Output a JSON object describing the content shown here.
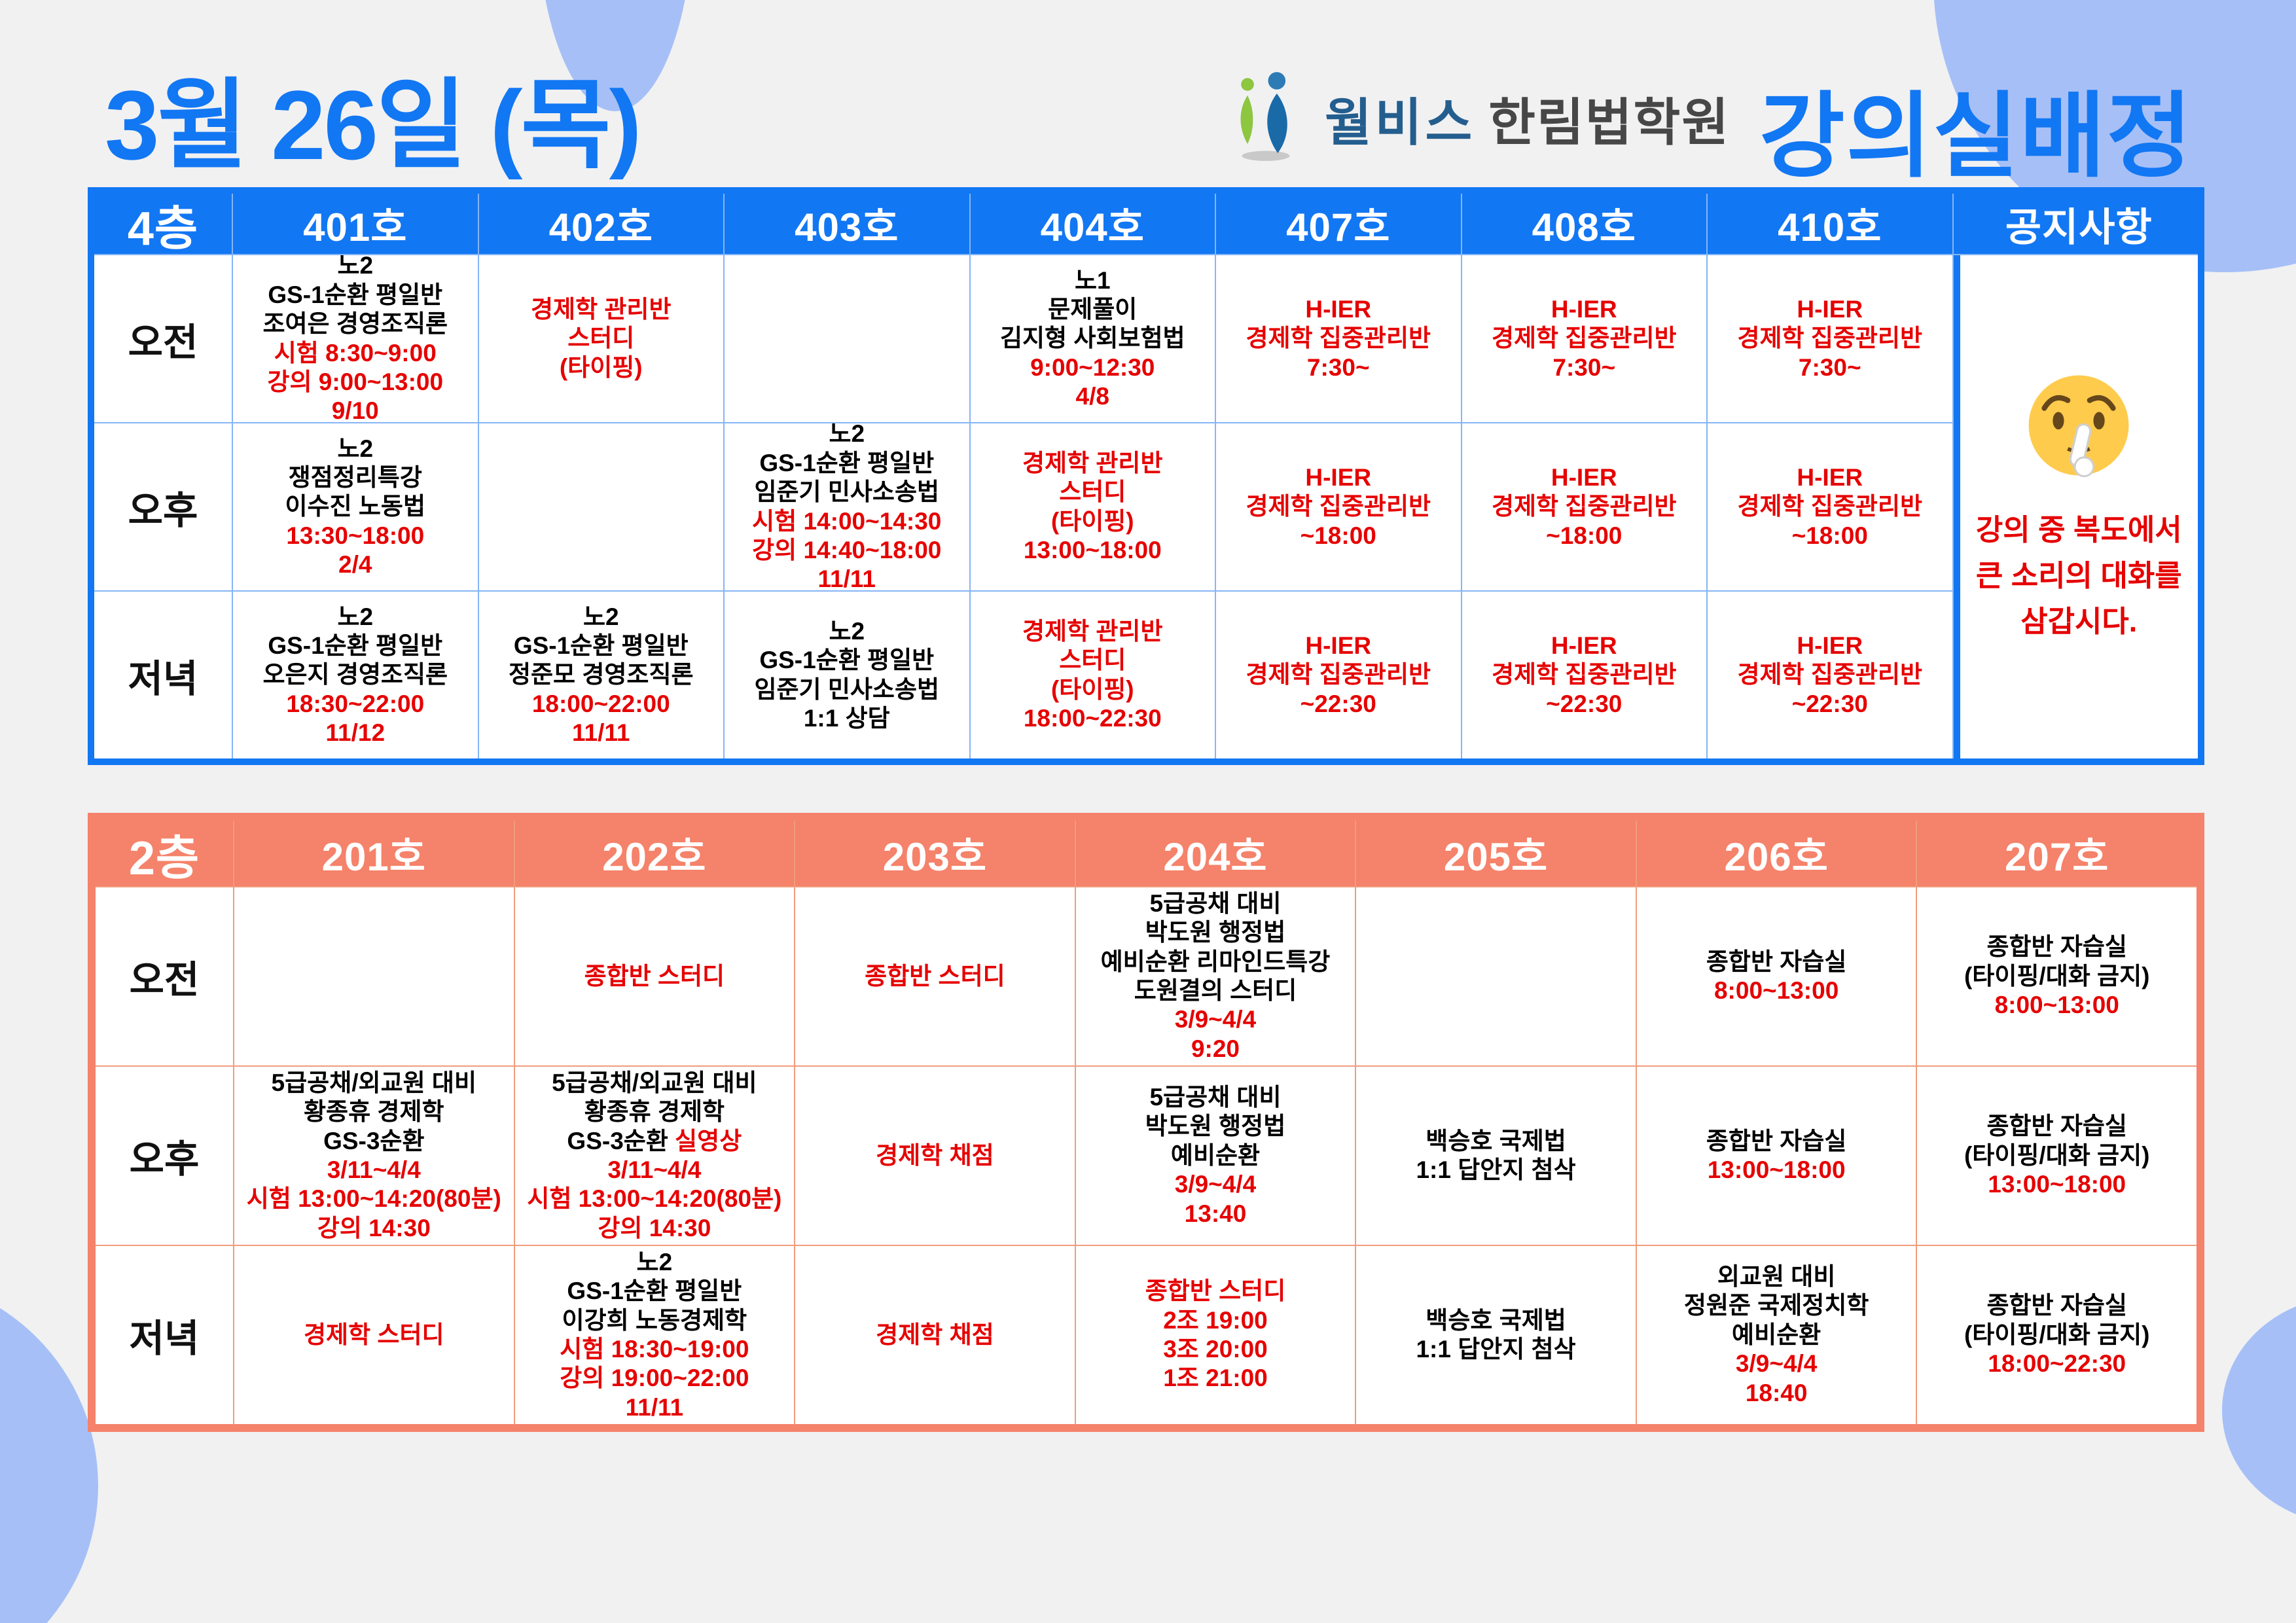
{
  "colors": {
    "accent_blue": "#1277f3",
    "accent_coral": "#f5826a",
    "cell_red": "#e60000",
    "decor_blue": "#a6c0f7",
    "logo_brand_blue": "#245e8e",
    "logo_academy_gray": "#474747",
    "background": "#f1f1f2"
  },
  "title": {
    "date": "3월 26일 (목)",
    "heading": "강의실배정"
  },
  "logo": {
    "brand": "월비스",
    "academy": "한림법학원"
  },
  "floor4": {
    "floor_label": "4층",
    "room_headers": [
      "401호",
      "402호",
      "403호",
      "404호",
      "407호",
      "408호",
      "410호"
    ],
    "notice_header": "공지사항",
    "row_labels": [
      "오전",
      "오후",
      "저녁"
    ],
    "rows": [
      [
        [
          {
            "text": "노2",
            "color": "black"
          },
          {
            "text": "GS-1순환 평일반",
            "color": "black"
          },
          {
            "text": "조여은 경영조직론",
            "color": "black"
          },
          {
            "text": "시험 8:30~9:00",
            "color": "red"
          },
          {
            "text": "강의 9:00~13:00",
            "color": "red"
          },
          {
            "text": "9/10",
            "color": "red"
          }
        ],
        [
          {
            "text": "경제학 관리반",
            "color": "red"
          },
          {
            "text": "스터디",
            "color": "red"
          },
          {
            "text": "(타이핑)",
            "color": "red"
          }
        ],
        [],
        [
          {
            "text": "노1",
            "color": "black"
          },
          {
            "text": "문제풀이",
            "color": "black"
          },
          {
            "text": "김지형 사회보험법",
            "color": "black"
          },
          {
            "text": "9:00~12:30",
            "color": "red"
          },
          {
            "text": "4/8",
            "color": "red"
          }
        ],
        [
          {
            "text": "H-IER",
            "color": "red"
          },
          {
            "text": "경제학 집중관리반",
            "color": "red"
          },
          {
            "text": "7:30~",
            "color": "red"
          }
        ],
        [
          {
            "text": "H-IER",
            "color": "red"
          },
          {
            "text": "경제학 집중관리반",
            "color": "red"
          },
          {
            "text": "7:30~",
            "color": "red"
          }
        ],
        [
          {
            "text": "H-IER",
            "color": "red"
          },
          {
            "text": "경제학 집중관리반",
            "color": "red"
          },
          {
            "text": "7:30~",
            "color": "red"
          }
        ]
      ],
      [
        [
          {
            "text": "노2",
            "color": "black"
          },
          {
            "text": "쟁점정리특강",
            "color": "black"
          },
          {
            "text": "이수진 노동법",
            "color": "black"
          },
          {
            "text": "13:30~18:00",
            "color": "red"
          },
          {
            "text": "2/4",
            "color": "red"
          }
        ],
        [],
        [
          {
            "text": "노2",
            "color": "black"
          },
          {
            "text": "GS-1순환 평일반",
            "color": "black"
          },
          {
            "text": "임준기 민사소송법",
            "color": "black"
          },
          {
            "text": "시험 14:00~14:30",
            "color": "red"
          },
          {
            "text": "강의 14:40~18:00",
            "color": "red"
          },
          {
            "text": "11/11",
            "color": "red"
          }
        ],
        [
          {
            "text": "경제학 관리반",
            "color": "red"
          },
          {
            "text": "스터디",
            "color": "red"
          },
          {
            "text": "(타이핑)",
            "color": "red"
          },
          {
            "text": "13:00~18:00",
            "color": "red"
          }
        ],
        [
          {
            "text": "H-IER",
            "color": "red"
          },
          {
            "text": "경제학 집중관리반",
            "color": "red"
          },
          {
            "text": "~18:00",
            "color": "red"
          }
        ],
        [
          {
            "text": "H-IER",
            "color": "red"
          },
          {
            "text": "경제학 집중관리반",
            "color": "red"
          },
          {
            "text": "~18:00",
            "color": "red"
          }
        ],
        [
          {
            "text": "H-IER",
            "color": "red"
          },
          {
            "text": "경제학 집중관리반",
            "color": "red"
          },
          {
            "text": "~18:00",
            "color": "red"
          }
        ]
      ],
      [
        [
          {
            "text": "노2",
            "color": "black"
          },
          {
            "text": "GS-1순환 평일반",
            "color": "black"
          },
          {
            "text": "오은지 경영조직론",
            "color": "black"
          },
          {
            "text": "18:30~22:00",
            "color": "red"
          },
          {
            "text": "11/12",
            "color": "red"
          }
        ],
        [
          {
            "text": "노2",
            "color": "black"
          },
          {
            "text": "GS-1순환 평일반",
            "color": "black"
          },
          {
            "text": "정준모 경영조직론",
            "color": "black"
          },
          {
            "text": "18:00~22:00",
            "color": "red"
          },
          {
            "text": "11/11",
            "color": "red"
          }
        ],
        [
          {
            "text": "노2",
            "color": "black"
          },
          {
            "text": "GS-1순환 평일반",
            "color": "black"
          },
          {
            "text": "임준기 민사소송법",
            "color": "black"
          },
          {
            "text": "1:1 상담",
            "color": "black"
          }
        ],
        [
          {
            "text": "경제학 관리반",
            "color": "red"
          },
          {
            "text": "스터디",
            "color": "red"
          },
          {
            "text": "(타이핑)",
            "color": "red"
          },
          {
            "text": "18:00~22:30",
            "color": "red"
          }
        ],
        [
          {
            "text": "H-IER",
            "color": "red"
          },
          {
            "text": "경제학 집중관리반",
            "color": "red"
          },
          {
            "text": "~22:30",
            "color": "red"
          }
        ],
        [
          {
            "text": "H-IER",
            "color": "red"
          },
          {
            "text": "경제학 집중관리반",
            "color": "red"
          },
          {
            "text": "~22:30",
            "color": "red"
          }
        ],
        [
          {
            "text": "H-IER",
            "color": "red"
          },
          {
            "text": "경제학 집중관리반",
            "color": "red"
          },
          {
            "text": "~22:30",
            "color": "red"
          }
        ]
      ]
    ],
    "notice": {
      "emoji": "shushing-face-emoji",
      "lines": [
        "강의 중 복도에서",
        "큰 소리의 대화를",
        "삼갑시다."
      ]
    }
  },
  "floor2": {
    "floor_label": "2층",
    "room_headers": [
      "201호",
      "202호",
      "203호",
      "204호",
      "205호",
      "206호",
      "207호"
    ],
    "row_labels": [
      "오전",
      "오후",
      "저녁"
    ],
    "rows": [
      [
        [],
        [
          {
            "text": "종합반 스터디",
            "color": "red"
          }
        ],
        [
          {
            "text": "종합반 스터디",
            "color": "red"
          }
        ],
        [
          {
            "text": "5급공채 대비",
            "color": "black"
          },
          {
            "text": "박도원 행정법",
            "color": "black"
          },
          {
            "text": "예비순환 리마인드특강",
            "color": "black"
          },
          {
            "text": "도원결의 스터디",
            "color": "black"
          },
          {
            "text": "3/9~4/4",
            "color": "red"
          },
          {
            "text": "9:20",
            "color": "red"
          }
        ],
        [],
        [
          {
            "text": "종합반 자습실",
            "color": "black"
          },
          {
            "text": "8:00~13:00",
            "color": "red"
          }
        ],
        [
          {
            "text": "종합반 자습실",
            "color": "black"
          },
          {
            "text": "(타이핑/대화 금지)",
            "color": "black"
          },
          {
            "text": "8:00~13:00",
            "color": "red"
          }
        ]
      ],
      [
        [
          {
            "text": "5급공채/외교원 대비",
            "color": "black"
          },
          {
            "text": "황종휴 경제학",
            "color": "black"
          },
          {
            "text": "GS-3순환",
            "color": "black"
          },
          {
            "text": "3/11~4/4",
            "color": "red"
          },
          {
            "text": "시험 13:00~14:20(80분)",
            "color": "red"
          },
          {
            "text": "강의 14:30",
            "color": "red"
          }
        ],
        [
          {
            "text": "5급공채/외교원 대비",
            "color": "black"
          },
          {
            "text": "황종휴 경제학",
            "color": "black"
          },
          {
            "parts": [
              {
                "text": "GS-3순환 ",
                "color": "black"
              },
              {
                "text": "실영상",
                "color": "red"
              }
            ]
          },
          {
            "text": "3/11~4/4",
            "color": "red"
          },
          {
            "text": "시험 13:00~14:20(80분)",
            "color": "red"
          },
          {
            "text": "강의 14:30",
            "color": "red"
          }
        ],
        [
          {
            "text": "경제학 채점",
            "color": "red"
          }
        ],
        [
          {
            "text": "5급공채 대비",
            "color": "black"
          },
          {
            "text": "박도원 행정법",
            "color": "black"
          },
          {
            "text": "예비순환",
            "color": "black"
          },
          {
            "text": "3/9~4/4",
            "color": "red"
          },
          {
            "text": "13:40",
            "color": "red"
          }
        ],
        [
          {
            "text": "백승호 국제법",
            "color": "black"
          },
          {
            "text": "1:1 답안지 첨삭",
            "color": "black"
          }
        ],
        [
          {
            "text": "종합반 자습실",
            "color": "black"
          },
          {
            "text": "13:00~18:00",
            "color": "red"
          }
        ],
        [
          {
            "text": "종합반 자습실",
            "color": "black"
          },
          {
            "text": "(타이핑/대화 금지)",
            "color": "black"
          },
          {
            "text": "13:00~18:00",
            "color": "red"
          }
        ]
      ],
      [
        [
          {
            "text": "경제학 스터디",
            "color": "red"
          }
        ],
        [
          {
            "text": "노2",
            "color": "black"
          },
          {
            "text": "GS-1순환 평일반",
            "color": "black"
          },
          {
            "text": "이강희 노동경제학",
            "color": "black"
          },
          {
            "text": "시험 18:30~19:00",
            "color": "red"
          },
          {
            "text": "강의 19:00~22:00",
            "color": "red"
          },
          {
            "text": "11/11",
            "color": "red"
          }
        ],
        [
          {
            "text": "경제학 채점",
            "color": "red"
          }
        ],
        [
          {
            "text": "종합반 스터디",
            "color": "red"
          },
          {
            "text": "2조 19:00",
            "color": "red"
          },
          {
            "text": "3조 20:00",
            "color": "red"
          },
          {
            "text": "1조 21:00",
            "color": "red"
          }
        ],
        [
          {
            "text": "백승호 국제법",
            "color": "black"
          },
          {
            "text": "1:1 답안지 첨삭",
            "color": "black"
          }
        ],
        [
          {
            "text": "외교원 대비",
            "color": "black"
          },
          {
            "text": "정원준 국제정치학",
            "color": "black"
          },
          {
            "text": "예비순환",
            "color": "black"
          },
          {
            "text": "3/9~4/4",
            "color": "red"
          },
          {
            "text": "18:40",
            "color": "red"
          }
        ],
        [
          {
            "text": "종합반 자습실",
            "color": "black"
          },
          {
            "text": "(타이핑/대화 금지)",
            "color": "black"
          },
          {
            "text": "18:00~22:30",
            "color": "red"
          }
        ]
      ]
    ]
  }
}
